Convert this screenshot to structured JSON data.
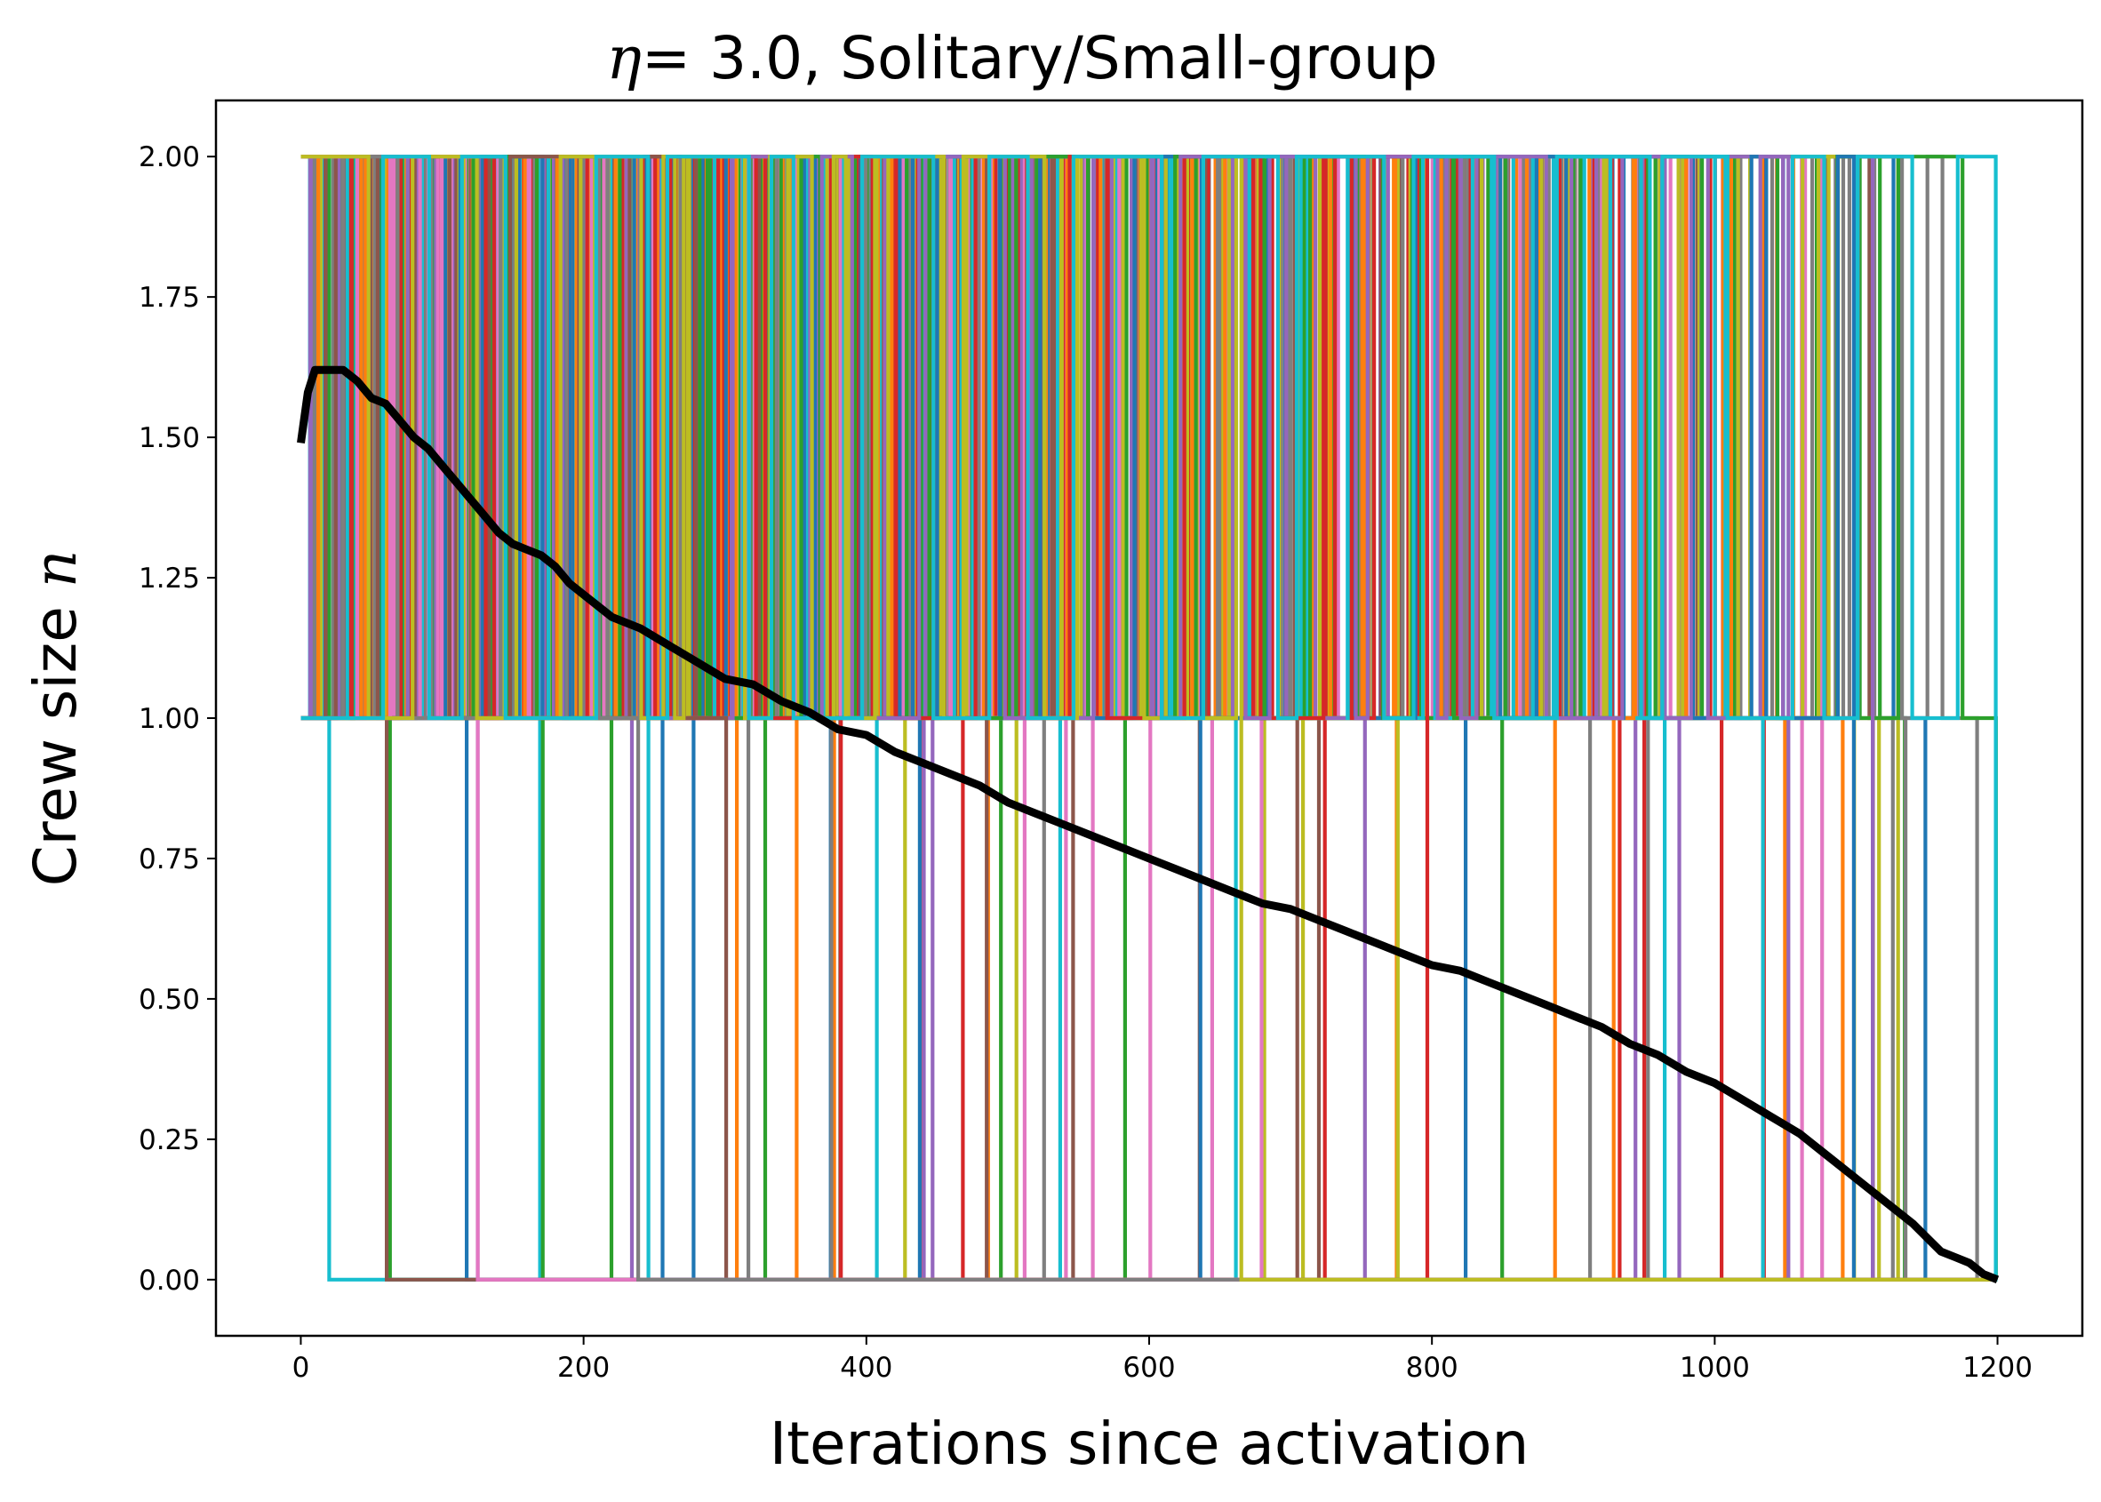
{
  "chart_data": {
    "type": "line",
    "title": {
      "symbol": "η",
      "rest": "= 3.0, Solitary/Small-group"
    },
    "xlabel": "Iterations since activation",
    "ylabel": {
      "text": "Crew size ",
      "symbol": "n"
    },
    "xlim": [
      -60,
      1260
    ],
    "ylim": [
      -0.1,
      2.1
    ],
    "x_ticks": [
      0,
      200,
      400,
      600,
      800,
      1000,
      1200
    ],
    "x_tick_labels": [
      "0",
      "200",
      "400",
      "600",
      "800",
      "1000",
      "1200"
    ],
    "y_ticks": [
      0.0,
      0.25,
      0.5,
      0.75,
      1.0,
      1.25,
      1.5,
      1.75,
      2.0
    ],
    "y_tick_labels": [
      "0.00",
      "0.25",
      "0.50",
      "0.75",
      "1.00",
      "1.25",
      "1.50",
      "1.75",
      "2.00"
    ],
    "grid": false,
    "legend": "none",
    "series_palette": [
      "#1f77b4",
      "#ff7f0e",
      "#2ca02c",
      "#d62728",
      "#9467bd",
      "#8c564b",
      "#e377c2",
      "#7f7f7f",
      "#bcbd22",
      "#17becf"
    ],
    "series_description": "many individual step trajectories switching between crew sizes 0, 1 and 2",
    "individual_trajectory_levels": [
      0,
      1,
      2
    ],
    "individual_trajectory_x_range": [
      0,
      1200
    ],
    "mean_series": {
      "color": "#000000",
      "x": [
        0,
        5,
        10,
        20,
        30,
        40,
        50,
        60,
        70,
        80,
        90,
        100,
        110,
        120,
        130,
        140,
        150,
        160,
        170,
        180,
        190,
        200,
        220,
        240,
        260,
        280,
        300,
        320,
        340,
        360,
        380,
        400,
        420,
        440,
        460,
        480,
        500,
        520,
        540,
        560,
        580,
        600,
        620,
        640,
        660,
        680,
        700,
        720,
        740,
        760,
        780,
        800,
        820,
        840,
        860,
        880,
        900,
        920,
        940,
        960,
        980,
        1000,
        1020,
        1040,
        1060,
        1080,
        1100,
        1120,
        1140,
        1160,
        1170,
        1180,
        1190,
        1200
      ],
      "y": [
        1.49,
        1.58,
        1.62,
        1.62,
        1.62,
        1.6,
        1.57,
        1.56,
        1.53,
        1.5,
        1.48,
        1.45,
        1.42,
        1.39,
        1.36,
        1.33,
        1.31,
        1.3,
        1.29,
        1.27,
        1.24,
        1.22,
        1.18,
        1.16,
        1.13,
        1.1,
        1.07,
        1.06,
        1.03,
        1.01,
        0.98,
        0.97,
        0.94,
        0.92,
        0.9,
        0.88,
        0.85,
        0.83,
        0.81,
        0.79,
        0.77,
        0.75,
        0.73,
        0.71,
        0.69,
        0.67,
        0.66,
        0.64,
        0.62,
        0.6,
        0.58,
        0.56,
        0.55,
        0.53,
        0.51,
        0.49,
        0.47,
        0.45,
        0.42,
        0.4,
        0.37,
        0.35,
        0.32,
        0.29,
        0.26,
        0.22,
        0.18,
        0.14,
        0.1,
        0.05,
        0.04,
        0.03,
        0.01,
        0.0
      ]
    }
  }
}
